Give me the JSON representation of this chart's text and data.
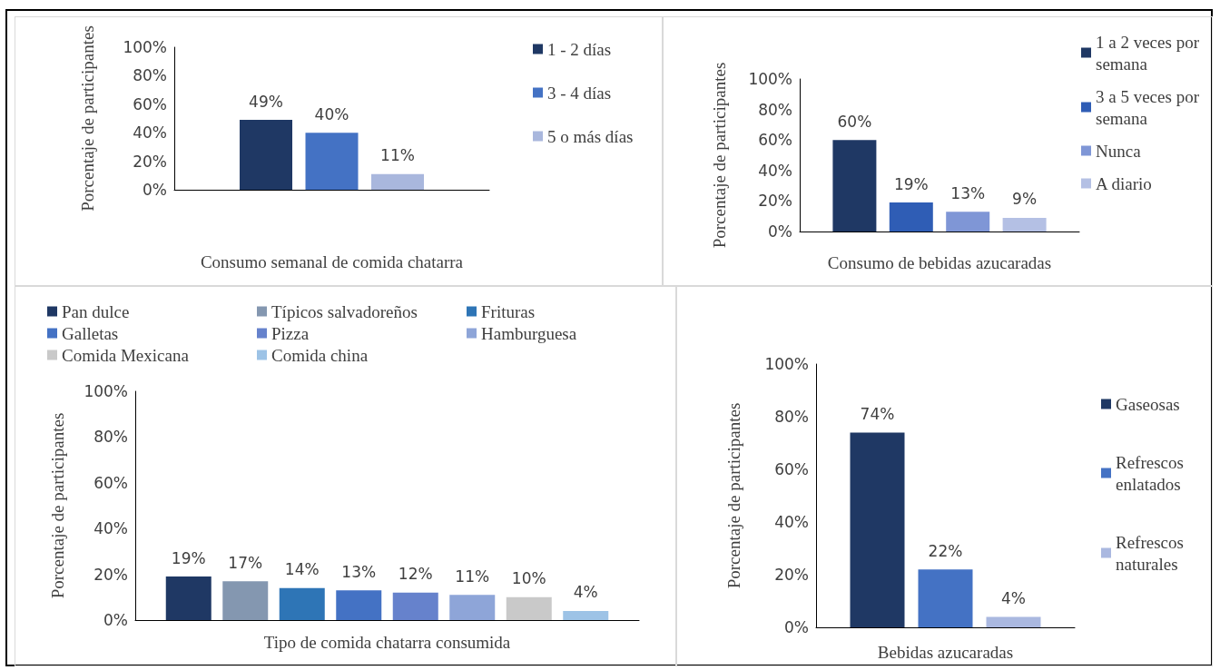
{
  "chart_data": [
    {
      "type": "bar",
      "xlabel": "Consumo semanal de comida chatarra",
      "ylabel": "Porcentaje de participantes",
      "categories": [
        null
      ],
      "legend": "top right",
      "ylim": [
        0,
        100
      ],
      "yticks": [
        {
          "value": 0,
          "label": "0%"
        },
        {
          "value": 20,
          "label": "20%"
        },
        {
          "value": 40,
          "label": "40%"
        },
        {
          "value": 60,
          "label": "60%"
        },
        {
          "value": 80,
          "label": "80%"
        },
        {
          "value": 100,
          "label": "100%"
        }
      ],
      "series": [
        {
          "name": "1 - 2 días",
          "color": "#1f3864",
          "values": [
            49
          ],
          "value_labels": [
            "49%"
          ]
        },
        {
          "name": "3 - 4 días",
          "color": "#4472c4",
          "values": [
            40
          ],
          "value_labels": [
            "40%"
          ]
        },
        {
          "name": "5 o más días",
          "color": "#a9b7dd",
          "values": [
            11
          ],
          "value_labels": [
            "11%"
          ]
        }
      ]
    },
    {
      "type": "bar",
      "xlabel": "Consumo de bebidas azucaradas",
      "ylabel": "Porcentaje de participantes",
      "categories": [
        null
      ],
      "legend": "top right",
      "ylim": [
        0,
        100
      ],
      "yticks": [
        {
          "value": 0,
          "label": "0%"
        },
        {
          "value": 20,
          "label": "20%"
        },
        {
          "value": 40,
          "label": "40%"
        },
        {
          "value": 60,
          "label": "60%"
        },
        {
          "value": 80,
          "label": "80%"
        },
        {
          "value": 100,
          "label": "100%"
        }
      ],
      "series": [
        {
          "name": "1 a 2 veces por semana",
          "color": "#1f3864",
          "values": [
            60
          ],
          "value_labels": [
            "60%"
          ]
        },
        {
          "name": "3 a 5 veces por semana",
          "color": "#2f5db5",
          "values": [
            19
          ],
          "value_labels": [
            "19%"
          ]
        },
        {
          "name": "Nunca",
          "color": "#7f96d6",
          "values": [
            13
          ],
          "value_labels": [
            "13%"
          ]
        },
        {
          "name": "A diario",
          "color": "#b4c0e4",
          "values": [
            9
          ],
          "value_labels": [
            "9%"
          ]
        }
      ]
    },
    {
      "type": "bar",
      "xlabel": "Tipo de comida chatarra consumida",
      "ylabel": "Porcentaje de participantes",
      "categories": [
        null
      ],
      "legend": "top",
      "ylim": [
        0,
        100
      ],
      "yticks": [
        {
          "value": 0,
          "label": "0%"
        },
        {
          "value": 20,
          "label": "20%"
        },
        {
          "value": 40,
          "label": "40%"
        },
        {
          "value": 60,
          "label": "60%"
        },
        {
          "value": 80,
          "label": "80%"
        },
        {
          "value": 100,
          "label": "100%"
        }
      ],
      "series": [
        {
          "name": "Pan dulce",
          "color": "#1f3864",
          "values": [
            19
          ],
          "value_labels": [
            "19%"
          ]
        },
        {
          "name": "Típicos salvadoreños",
          "color": "#8497b0",
          "values": [
            17
          ],
          "value_labels": [
            "17%"
          ]
        },
        {
          "name": "Frituras",
          "color": "#2e75b6",
          "values": [
            14
          ],
          "value_labels": [
            "14%"
          ]
        },
        {
          "name": "Galletas",
          "color": "#4472c4",
          "values": [
            13
          ],
          "value_labels": [
            "13%"
          ]
        },
        {
          "name": "Pizza",
          "color": "#6682cc",
          "values": [
            12
          ],
          "value_labels": [
            "12%"
          ]
        },
        {
          "name": "Hamburguesa",
          "color": "#8ea5d8",
          "values": [
            11
          ],
          "value_labels": [
            "11%"
          ]
        },
        {
          "name": "Comida Mexicana",
          "color": "#c9c9c9",
          "values": [
            10
          ],
          "value_labels": [
            "10%"
          ]
        },
        {
          "name": "Comida china",
          "color": "#9dc3e6",
          "values": [
            4
          ],
          "value_labels": [
            "4%"
          ]
        }
      ]
    },
    {
      "type": "bar",
      "xlabel": "Bebidas azucaradas",
      "ylabel": "Porcentaje de participantes",
      "categories": [
        null
      ],
      "legend": "right",
      "ylim": [
        0,
        100
      ],
      "yticks": [
        {
          "value": 0,
          "label": "0%"
        },
        {
          "value": 20,
          "label": "20%"
        },
        {
          "value": 40,
          "label": "40%"
        },
        {
          "value": 60,
          "label": "60%"
        },
        {
          "value": 80,
          "label": "80%"
        },
        {
          "value": 100,
          "label": "100%"
        }
      ],
      "series": [
        {
          "name": "Gaseosas",
          "color": "#1f3864",
          "values": [
            74
          ],
          "value_labels": [
            "74%"
          ]
        },
        {
          "name": "Refrescos enlatados",
          "color": "#4472c4",
          "values": [
            22
          ],
          "value_labels": [
            "22%"
          ]
        },
        {
          "name": "Refrescos naturales",
          "color": "#aab8e0",
          "values": [
            4
          ],
          "value_labels": [
            "4%"
          ]
        }
      ]
    }
  ]
}
